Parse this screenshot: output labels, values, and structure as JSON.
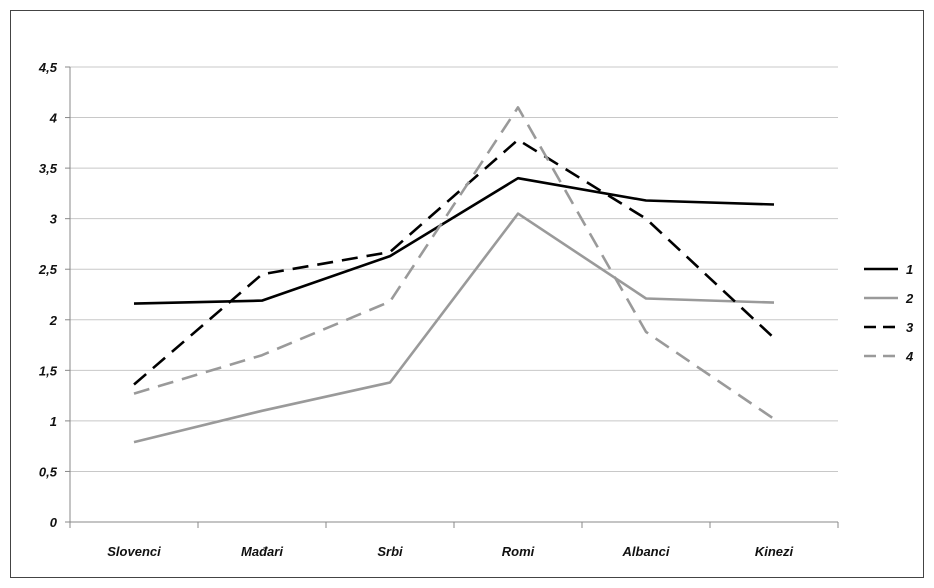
{
  "chart_data": {
    "type": "line",
    "title": "",
    "xlabel": "",
    "ylabel": "",
    "categories": [
      "Slovenci",
      "Mađari",
      "Srbi",
      "Romi",
      "Albanci",
      "Kinezi"
    ],
    "ylim": [
      0,
      4.5
    ],
    "yticks": [
      "0",
      "0,5",
      "1",
      "1,5",
      "2",
      "2,5",
      "3",
      "3,5",
      "4",
      "4,5"
    ],
    "ytick_values": [
      0,
      0.5,
      1,
      1.5,
      2,
      2.5,
      3,
      3.5,
      4,
      4.5
    ],
    "grid": true,
    "legend_position": "right",
    "series": [
      {
        "name": "1",
        "values": [
          2.16,
          2.19,
          2.63,
          3.4,
          3.18,
          3.14
        ],
        "color": "#000000",
        "dash": "solid"
      },
      {
        "name": "2",
        "values": [
          0.79,
          1.1,
          1.38,
          3.05,
          2.21,
          2.17
        ],
        "color": "#9a9a9a",
        "dash": "solid"
      },
      {
        "name": "3",
        "values": [
          1.36,
          2.45,
          2.67,
          3.78,
          3.0,
          1.82
        ],
        "color": "#000000",
        "dash": "dashed"
      },
      {
        "name": "4",
        "values": [
          1.27,
          1.65,
          2.18,
          4.1,
          1.88,
          1.02
        ],
        "color": "#9a9a9a",
        "dash": "dashed"
      }
    ]
  }
}
